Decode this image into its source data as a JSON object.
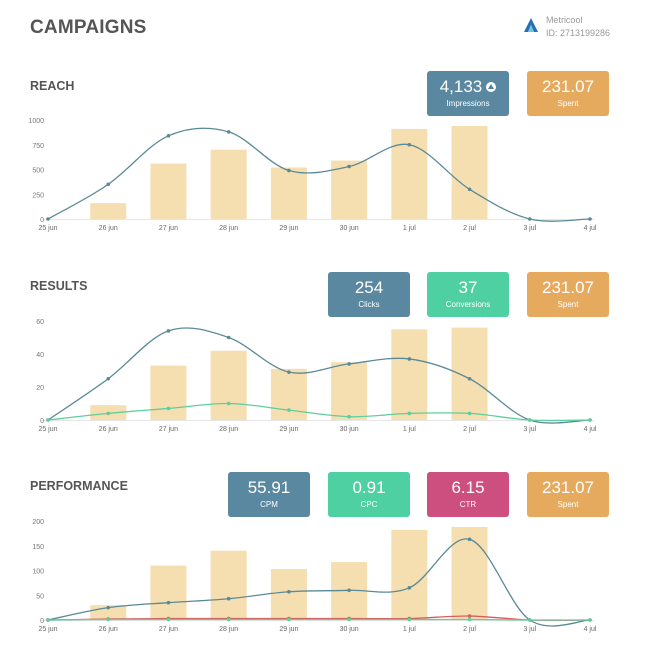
{
  "header": {
    "title": "CAMPAIGNS",
    "brand_name": "Metricool",
    "brand_id": "ID: 2713199286"
  },
  "sections": {
    "reach": {
      "title": "REACH",
      "kpis": [
        {
          "value": "4,133",
          "label": "Impressions",
          "color": "#5a88a0",
          "arrow": "arrow-up-circle-icon"
        },
        {
          "value": "231.07",
          "label": "Spent",
          "color": "#e5aa5e"
        }
      ]
    },
    "results": {
      "title": "RESULTS",
      "kpis": [
        {
          "value": "254",
          "label": "Clicks",
          "color": "#5a88a0"
        },
        {
          "value": "37",
          "label": "Conversions",
          "color": "#4fd0a2"
        },
        {
          "value": "231.07",
          "label": "Spent",
          "color": "#e5aa5e"
        }
      ]
    },
    "performance": {
      "title": "PERFORMANCE",
      "kpis": [
        {
          "value": "55.91",
          "label": "CPM",
          "color": "#5a88a0"
        },
        {
          "value": "0.91",
          "label": "CPC",
          "color": "#4fd0a2"
        },
        {
          "value": "6.15",
          "label": "CTR",
          "color": "#cc4f80"
        },
        {
          "value": "231.07",
          "label": "Spent",
          "color": "#e5aa5e"
        }
      ]
    }
  },
  "chart_data": [
    {
      "id": "reach",
      "type": "bar",
      "title": "REACH",
      "categories": [
        "25 jun",
        "26 jun",
        "27 jun",
        "28 jun",
        "29 jun",
        "30 jun",
        "1 jul",
        "2 jul",
        "3 jul",
        "4 jul"
      ],
      "ylim": [
        0,
        1000
      ],
      "yticks": [
        0,
        250,
        500,
        750,
        1000
      ],
      "bars": [
        0,
        160,
        560,
        700,
        520,
        590,
        910,
        940,
        0,
        0
      ],
      "bar_color": "#f5deb0",
      "series": [
        {
          "values": [
            0,
            350,
            840,
            880,
            490,
            530,
            750,
            300,
            0,
            0
          ],
          "color": "#5a8a98"
        }
      ]
    },
    {
      "id": "results",
      "type": "bar",
      "title": "RESULTS",
      "categories": [
        "25 jun",
        "26 jun",
        "27 jun",
        "28 jun",
        "29 jun",
        "30 jun",
        "1 jul",
        "2 jul",
        "3 jul",
        "4 jul"
      ],
      "ylim": [
        0,
        60
      ],
      "yticks": [
        0,
        20,
        40,
        60
      ],
      "bars": [
        0,
        9,
        33,
        42,
        31,
        35,
        55,
        56,
        0,
        0
      ],
      "bar_color": "#f5deb0",
      "series": [
        {
          "values": [
            0,
            25,
            54,
            50,
            29,
            34,
            37,
            25,
            0,
            0
          ],
          "color": "#5a8a98"
        },
        {
          "values": [
            0,
            4,
            7,
            10,
            6,
            2,
            4,
            4,
            0,
            0
          ],
          "color": "#5fcf9c"
        }
      ]
    },
    {
      "id": "performance",
      "type": "bar",
      "title": "PERFORMANCE",
      "categories": [
        "25 jun",
        "26 jun",
        "27 jun",
        "28 jun",
        "29 jun",
        "30 jun",
        "1 jul",
        "2 jul",
        "3 jul",
        "4 jul"
      ],
      "ylim": [
        0,
        200
      ],
      "yticks": [
        0,
        50,
        100,
        150,
        200
      ],
      "bars": [
        0,
        30,
        110,
        140,
        103,
        117,
        182,
        188,
        0,
        0
      ],
      "bar_color": "#f5deb0",
      "series": [
        {
          "values": [
            0,
            25,
            35,
            43,
            57,
            60,
            65,
            163,
            0,
            0
          ],
          "color": "#5a8a98"
        },
        {
          "values": [
            0,
            2,
            3,
            3,
            3,
            3,
            3,
            8,
            0,
            0
          ],
          "color": "#d95c5c"
        },
        {
          "values": [
            0,
            1,
            1,
            1,
            1,
            1,
            1,
            1,
            0,
            0
          ],
          "color": "#5fcf9c"
        }
      ]
    }
  ]
}
